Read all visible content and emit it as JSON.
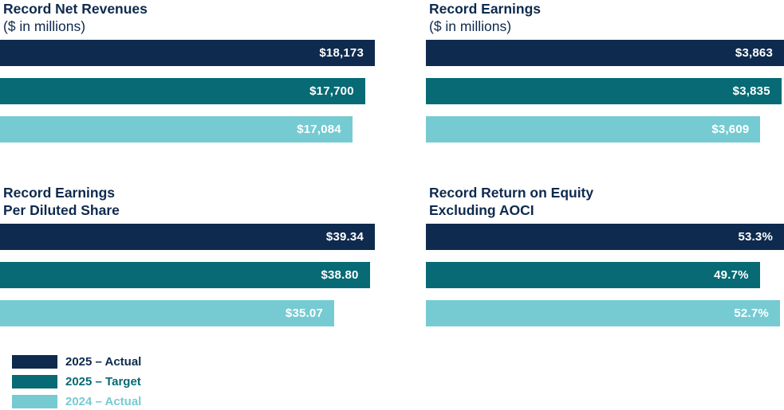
{
  "colors": {
    "navy": "#0e2a4e",
    "teal": "#076a74",
    "light_teal": "#76cbd2",
    "title_text": "#0e2a4e",
    "bar_label_text": "#ffffff",
    "background": "#ffffff"
  },
  "legend": {
    "items": [
      {
        "label": "2025 – Actual",
        "color": "#0e2a4e"
      },
      {
        "label": "2025 – Target",
        "color": "#076a74"
      },
      {
        "label": "2024 – Actual",
        "color": "#76cbd2"
      }
    ]
  },
  "chart_data": [
    {
      "type": "bar",
      "orientation": "horizontal",
      "title_lines": [
        "Record Net Revenues"
      ],
      "subtitle": "($ in millions)",
      "categories": [
        "2025 – Actual",
        "2025 – Target",
        "2024 – Actual"
      ],
      "values": [
        18173,
        17700,
        17084
      ],
      "data_labels": [
        "$18,173",
        "$17,700",
        "$17,084"
      ],
      "xlim": [
        0,
        18173
      ],
      "grid": false,
      "legend_position": "bottom-left"
    },
    {
      "type": "bar",
      "orientation": "horizontal",
      "title_lines": [
        "Record Earnings"
      ],
      "subtitle": "($ in millions)",
      "categories": [
        "2025 – Actual",
        "2025 – Target",
        "2024 – Actual"
      ],
      "values": [
        3863,
        3835,
        3609
      ],
      "data_labels": [
        "$3,863",
        "$3,835",
        "$3,609"
      ],
      "xlim": [
        0,
        3863
      ],
      "grid": false,
      "legend_position": "bottom-left"
    },
    {
      "type": "bar",
      "orientation": "horizontal",
      "title_lines": [
        "Record Earnings",
        "Per Diluted Share"
      ],
      "subtitle": "",
      "categories": [
        "2025 – Actual",
        "2025 – Target",
        "2024 – Actual"
      ],
      "values": [
        39.34,
        38.8,
        35.07
      ],
      "data_labels": [
        "$39.34",
        "$38.80",
        "$35.07"
      ],
      "xlim": [
        0,
        39.34
      ],
      "grid": false,
      "legend_position": "bottom-left"
    },
    {
      "type": "bar",
      "orientation": "horizontal",
      "title_lines": [
        "Record Return on Equity",
        "Excluding AOCI"
      ],
      "subtitle": "",
      "categories": [
        "2025 – Actual",
        "2025 – Target",
        "2024 – Actual"
      ],
      "values": [
        53.3,
        49.7,
        52.7
      ],
      "data_labels": [
        "53.3%",
        "49.7%",
        "52.7%"
      ],
      "xlim": [
        0,
        53.3
      ],
      "grid": false,
      "legend_position": "bottom-left"
    }
  ]
}
